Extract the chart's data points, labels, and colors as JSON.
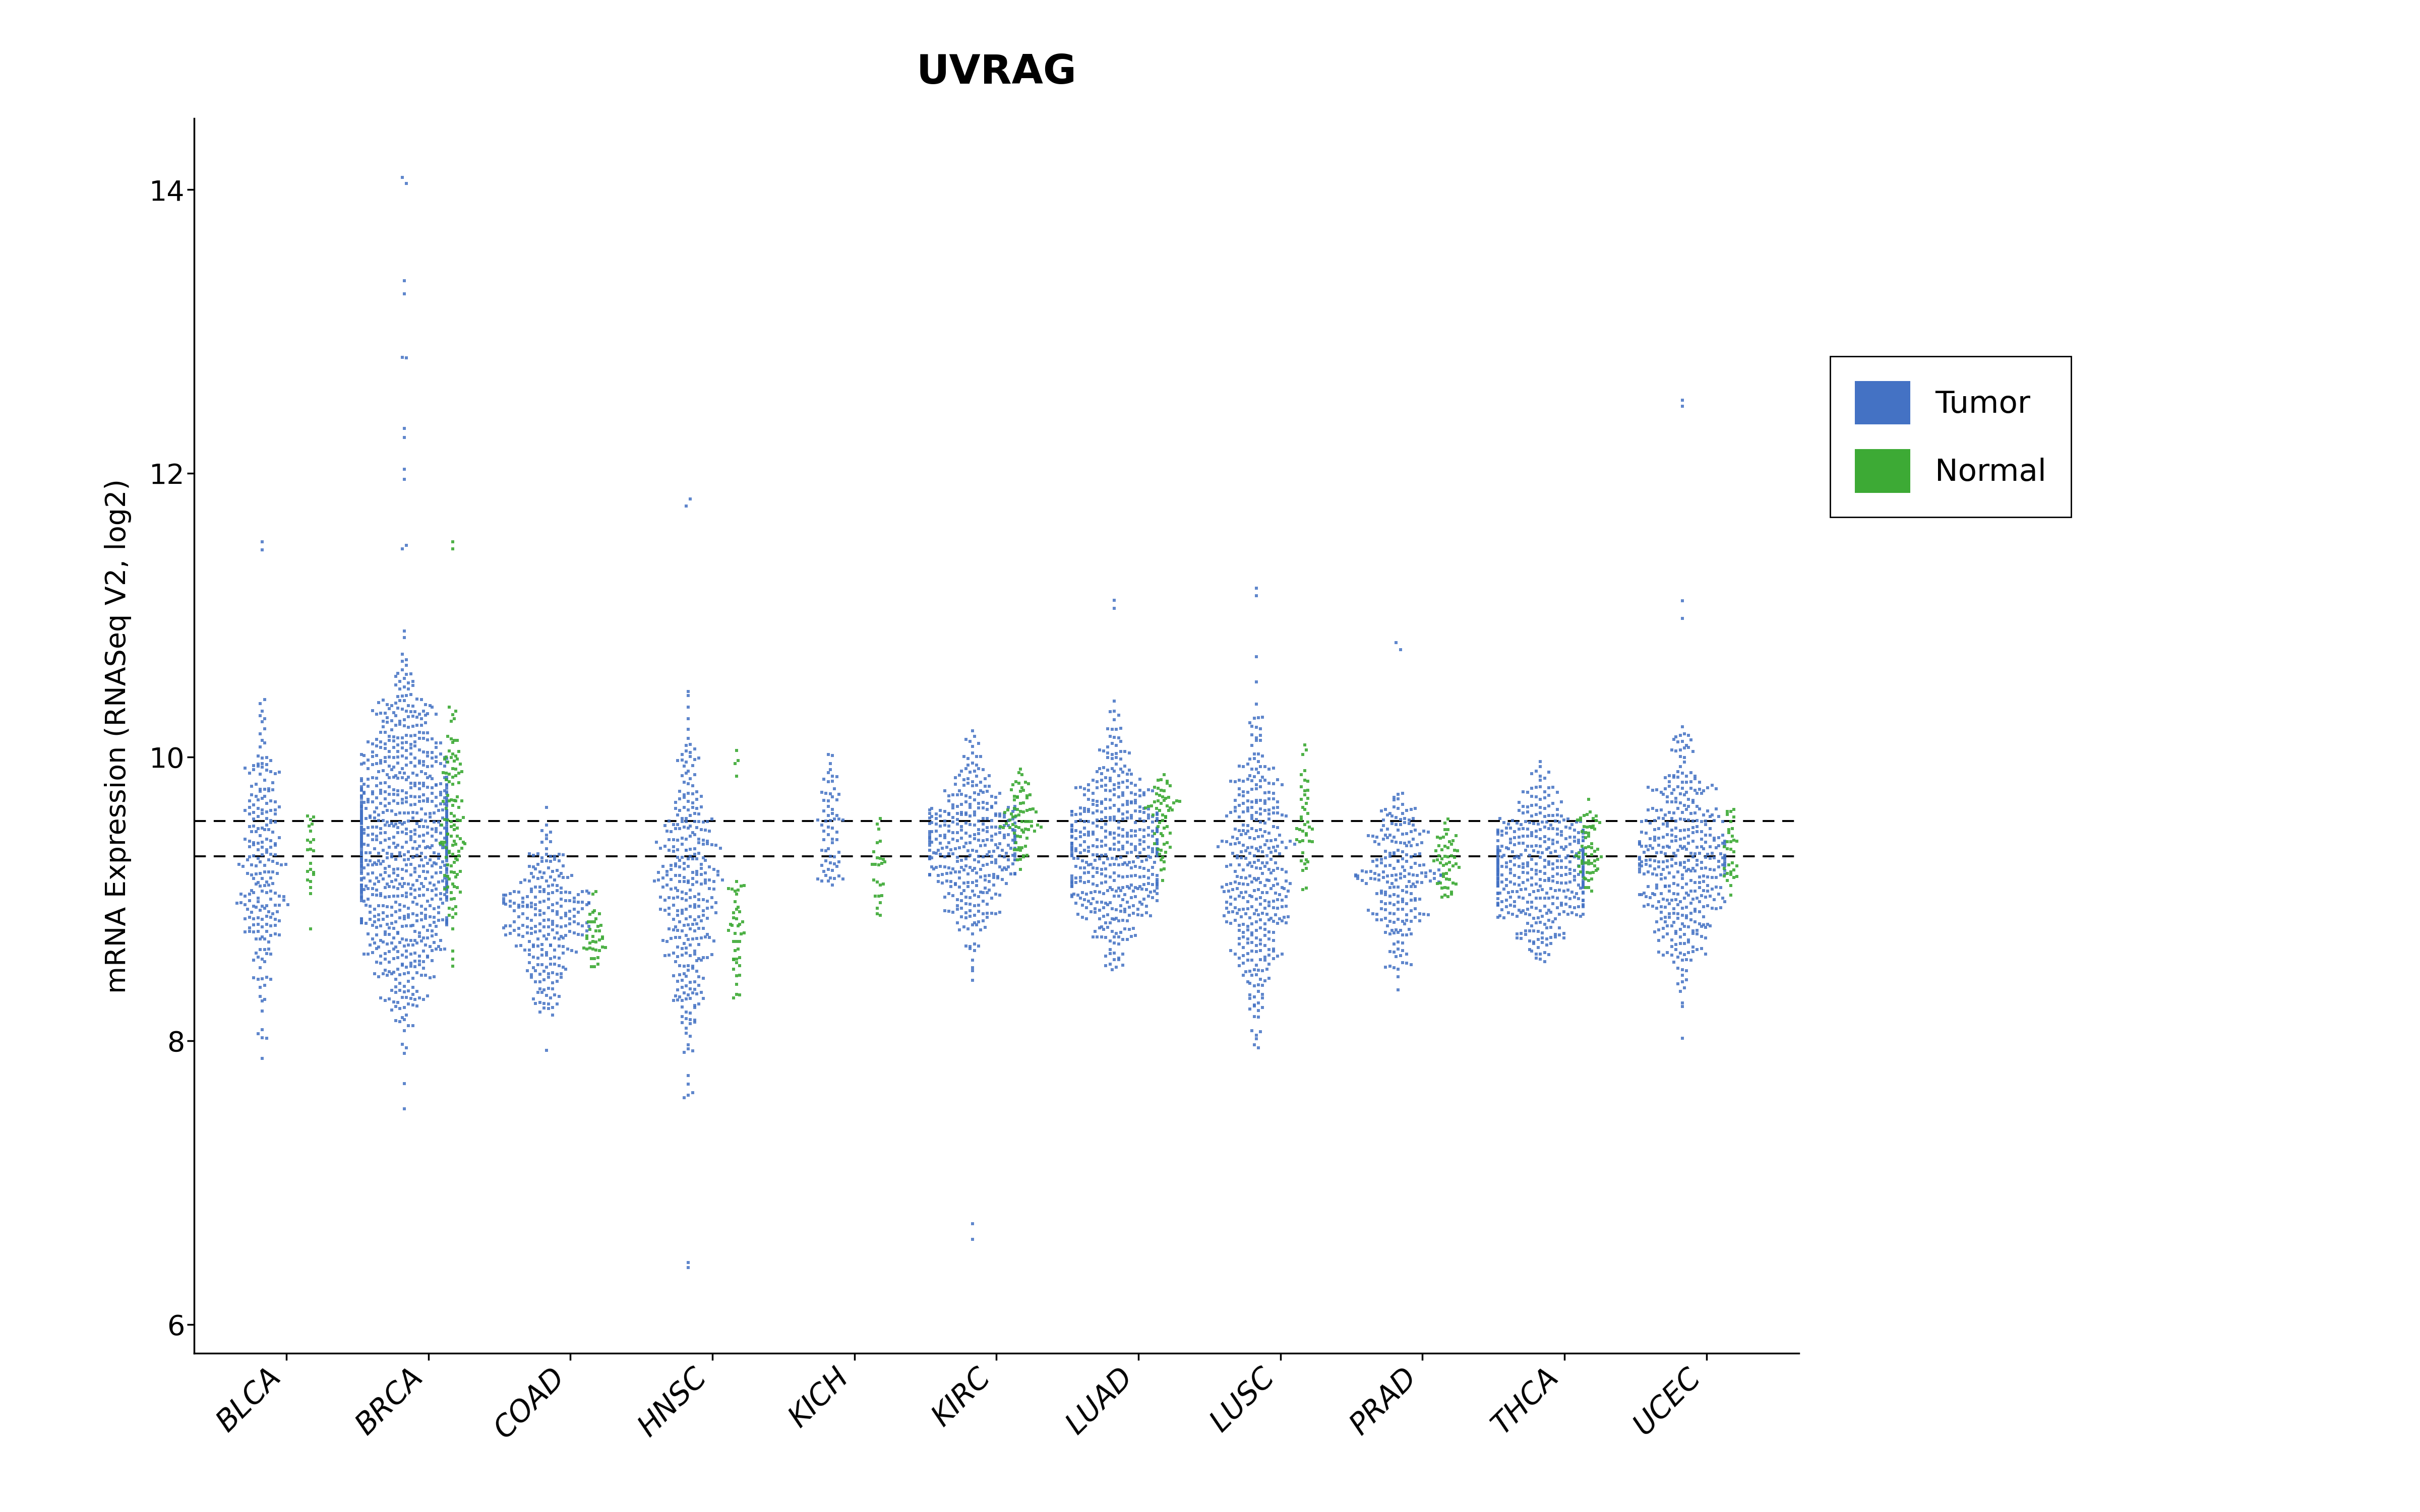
{
  "title": "UVRAG",
  "ylabel": "mRNA Expression (RNASeq V2, log2)",
  "categories": [
    "BLCA",
    "BRCA",
    "COAD",
    "HNSC",
    "KICH",
    "KIRC",
    "LUAD",
    "LUSC",
    "PRAD",
    "THCA",
    "UCEC"
  ],
  "ylim": [
    5.8,
    14.5
  ],
  "yticks": [
    6,
    8,
    10,
    12,
    14
  ],
  "hline1": 9.3,
  "hline2": 9.55,
  "tumor_color": "#4472C4",
  "normal_color": "#3DAA35",
  "background_color": "#ffffff",
  "tumor_data": {
    "BLCA": {
      "mean": 9.25,
      "std": 0.52,
      "n": 220,
      "min": 7.5,
      "max": 10.7,
      "extra_high": [
        11.5
      ],
      "extra_low": []
    },
    "BRCA": {
      "mean": 9.4,
      "std": 0.62,
      "n": 900,
      "min": 7.3,
      "max": 10.9,
      "extra_high": [
        11.5,
        12.0,
        12.3,
        12.8,
        13.3,
        14.1
      ],
      "extra_low": []
    },
    "COAD": {
      "mean": 8.85,
      "std": 0.3,
      "n": 260,
      "min": 7.9,
      "max": 9.7,
      "extra_high": [],
      "extra_low": []
    },
    "HNSC": {
      "mean": 9.1,
      "std": 0.55,
      "n": 320,
      "min": 7.4,
      "max": 10.5,
      "extra_high": [
        11.8
      ],
      "extra_low": [
        6.4
      ]
    },
    "KICH": {
      "mean": 9.45,
      "std": 0.32,
      "n": 65,
      "min": 9.0,
      "max": 10.5,
      "extra_high": [],
      "extra_low": []
    },
    "KIRC": {
      "mean": 9.35,
      "std": 0.32,
      "n": 370,
      "min": 8.3,
      "max": 10.4,
      "extra_high": [],
      "extra_low": [
        6.65
      ]
    },
    "LUAD": {
      "mean": 9.35,
      "std": 0.38,
      "n": 480,
      "min": 8.5,
      "max": 10.4,
      "extra_high": [
        11.1
      ],
      "extra_low": []
    },
    "LUSC": {
      "mean": 9.2,
      "std": 0.52,
      "n": 370,
      "min": 7.9,
      "max": 10.85,
      "extra_high": [
        11.2
      ],
      "extra_low": []
    },
    "PRAD": {
      "mean": 9.15,
      "std": 0.32,
      "n": 220,
      "min": 8.2,
      "max": 9.75,
      "extra_high": [
        10.8
      ],
      "extra_low": []
    },
    "THCA": {
      "mean": 9.2,
      "std": 0.3,
      "n": 450,
      "min": 8.55,
      "max": 10.1,
      "extra_high": [],
      "extra_low": []
    },
    "UCEC": {
      "mean": 9.25,
      "std": 0.42,
      "n": 420,
      "min": 7.1,
      "max": 10.3,
      "extra_high": [
        11.0,
        12.5
      ],
      "extra_low": []
    }
  },
  "normal_data": {
    "BLCA": {
      "mean": 9.3,
      "std": 0.28,
      "n": 22,
      "min": 8.35,
      "max": 9.85,
      "extra_high": [],
      "extra_low": []
    },
    "BRCA": {
      "mean": 9.5,
      "std": 0.38,
      "n": 112,
      "min": 8.5,
      "max": 10.55,
      "extra_high": [
        11.5
      ],
      "extra_low": []
    },
    "COAD": {
      "mean": 8.75,
      "std": 0.18,
      "n": 38,
      "min": 8.5,
      "max": 9.1,
      "extra_high": [],
      "extra_low": []
    },
    "HNSC": {
      "mean": 8.72,
      "std": 0.28,
      "n": 42,
      "min": 8.25,
      "max": 9.25,
      "extra_high": [
        9.9,
        10.0
      ],
      "extra_low": []
    },
    "KICH": {
      "mean": 9.2,
      "std": 0.25,
      "n": 25,
      "min": 8.85,
      "max": 9.6,
      "extra_high": [],
      "extra_low": []
    },
    "KIRC": {
      "mean": 9.6,
      "std": 0.18,
      "n": 72,
      "min": 9.2,
      "max": 9.95,
      "extra_high": [],
      "extra_low": []
    },
    "LUAD": {
      "mean": 9.55,
      "std": 0.2,
      "n": 58,
      "min": 9.1,
      "max": 9.95,
      "extra_high": [],
      "extra_low": []
    },
    "LUSC": {
      "mean": 9.5,
      "std": 0.28,
      "n": 42,
      "min": 9.05,
      "max": 10.1,
      "extra_high": [],
      "extra_low": []
    },
    "PRAD": {
      "mean": 9.25,
      "std": 0.18,
      "n": 52,
      "min": 8.9,
      "max": 9.6,
      "extra_high": [],
      "extra_low": []
    },
    "THCA": {
      "mean": 9.4,
      "std": 0.18,
      "n": 58,
      "min": 9.05,
      "max": 9.75,
      "extra_high": [],
      "extra_low": []
    },
    "UCEC": {
      "mean": 9.3,
      "std": 0.22,
      "n": 32,
      "min": 8.95,
      "max": 9.72,
      "extra_high": [],
      "extra_low": []
    }
  }
}
